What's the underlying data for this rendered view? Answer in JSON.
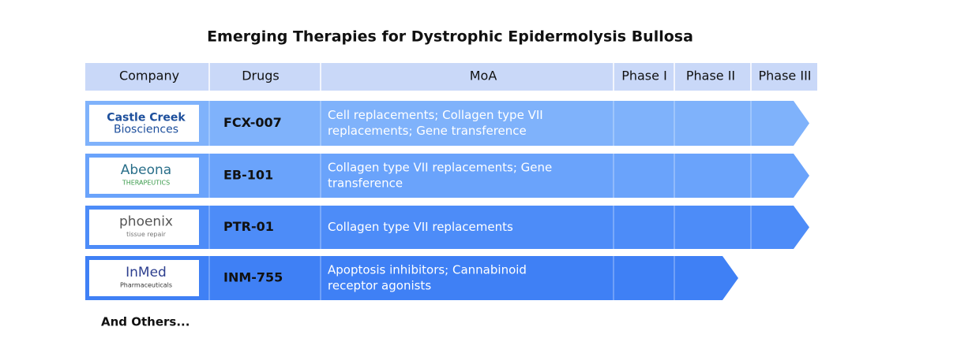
{
  "title": "Emerging Therapies for Dystrophic Epidermolysis Bullosa",
  "header": [
    "Company",
    "Drugs",
    "MoA",
    "Phase I",
    "Phase II",
    "Phase III"
  ],
  "rows": [
    {
      "logo": [
        "Castle Creek",
        "Biosciences"
      ],
      "drug": "FCX-007",
      "moa": [
        "Cell replacements; Collagen type VII",
        "replacements; Gene transference"
      ]
    },
    {
      "logo": [
        "Abeona",
        "THERAPEUTICS"
      ],
      "drug": "EB-101",
      "moa": [
        "Collagen type VII replacements; Gene",
        "transference"
      ]
    },
    {
      "logo": [
        "phoenix",
        "tissue repair"
      ],
      "drug": "PTR-01",
      "moa": [
        "Collagen type VII replacements"
      ]
    },
    {
      "logo": [
        "InMed",
        "Pharmaceuticals"
      ],
      "drug": "INM-755",
      "moa": [
        "Apoptosis inhibitors; Cannabinoid",
        "receptor agonists"
      ]
    }
  ],
  "footer": "And Others..."
}
